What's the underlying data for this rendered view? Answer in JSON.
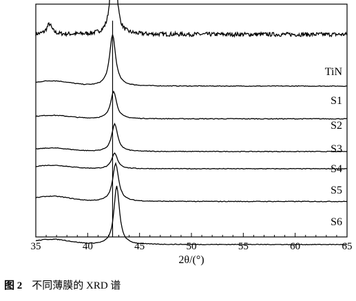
{
  "chart_data": {
    "type": "line",
    "xlabel": "2θ/(°)",
    "xlim": [
      35,
      65
    ],
    "xticks": [
      35,
      40,
      45,
      50,
      55,
      60,
      65
    ],
    "reference_line_x": 42.4,
    "series": [
      {
        "name": "TiN",
        "baseline": 0.92,
        "peaks": [
          {
            "x": 36.3,
            "h": 0.06,
            "w": 0.3
          },
          {
            "x": 42.5,
            "h": 0.85,
            "w": 0.22
          }
        ],
        "noise": 0.012,
        "drift": 0.0
      },
      {
        "name": "S1",
        "baseline": 0.62,
        "peaks": [
          {
            "x": 42.4,
            "h": 0.3,
            "w": 0.35
          }
        ],
        "noise": 0.0,
        "drift": 0.03
      },
      {
        "name": "S2",
        "baseline": 0.43,
        "peaks": [
          {
            "x": 42.5,
            "h": 0.16,
            "w": 0.35
          }
        ],
        "noise": 0.0,
        "drift": 0.02
      },
      {
        "name": "S3",
        "baseline": 0.24,
        "peaks": [
          {
            "x": 42.6,
            "h": 0.16,
            "w": 0.35
          }
        ],
        "noise": 0.0,
        "drift": 0.02
      },
      {
        "name": "S4",
        "baseline": 0.14,
        "peaks": [
          {
            "x": 42.6,
            "h": 0.09,
            "w": 0.35
          }
        ],
        "noise": 0.0,
        "drift": 0.02
      },
      {
        "name": "S5",
        "baseline": -0.05,
        "peaks": [
          {
            "x": 42.7,
            "h": 0.22,
            "w": 0.35
          }
        ],
        "noise": 0.0,
        "drift": 0.03
      },
      {
        "name": "S6",
        "baseline": -0.3,
        "peaks": [
          {
            "x": 42.8,
            "h": 0.34,
            "w": 0.32
          }
        ],
        "noise": 0.0,
        "drift": 0.03
      }
    ]
  },
  "caption": {
    "figure_number": "图 2",
    "text": "不同薄膜的 XRD 谱"
  }
}
